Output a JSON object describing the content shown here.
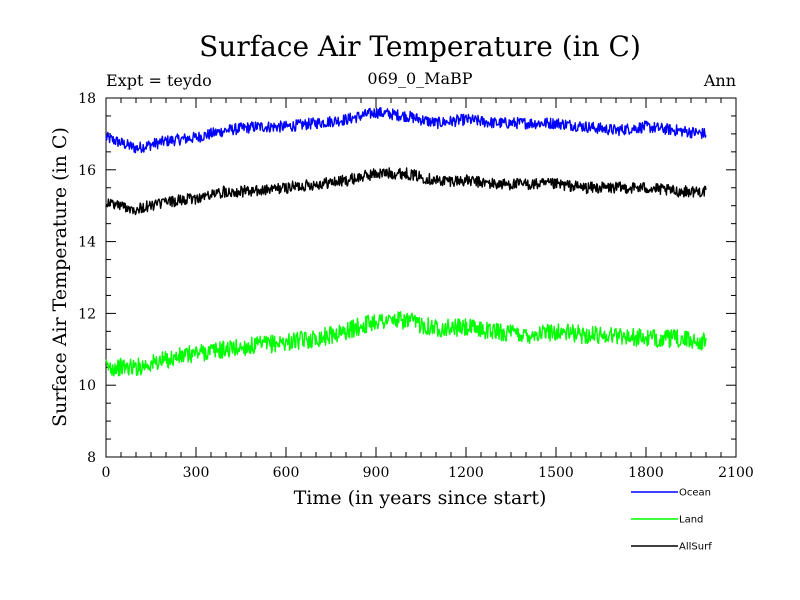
{
  "chart_data": {
    "type": "line",
    "title": "Surface Air Temperature (in C)",
    "subtitle_left": "Expt = teydo",
    "subtitle_center": "069_0_MaBP",
    "subtitle_right": "Ann",
    "xlabel": "Time (in years since start)",
    "ylabel": "Surface Air Temperature (in C)",
    "xlim": [
      0,
      2100
    ],
    "ylim": [
      8,
      18
    ],
    "xticks": [
      0,
      300,
      600,
      900,
      1200,
      1500,
      1800,
      2100
    ],
    "yticks": [
      8,
      10,
      12,
      14,
      16,
      18
    ],
    "legend_position": "bottom-right",
    "series": [
      {
        "name": "Ocean",
        "color": "#0000ff",
        "x": [
          0,
          100,
          200,
          300,
          400,
          500,
          600,
          700,
          800,
          900,
          1000,
          1100,
          1200,
          1300,
          1400,
          1500,
          1600,
          1700,
          1800,
          1900,
          2000
        ],
        "values": [
          16.9,
          16.6,
          16.8,
          16.9,
          17.1,
          17.2,
          17.2,
          17.3,
          17.4,
          17.6,
          17.5,
          17.3,
          17.4,
          17.3,
          17.3,
          17.3,
          17.2,
          17.1,
          17.2,
          17.1,
          17.0
        ]
      },
      {
        "name": "Land",
        "color": "#00ff00",
        "x": [
          0,
          100,
          200,
          300,
          400,
          500,
          600,
          700,
          800,
          900,
          1000,
          1100,
          1200,
          1300,
          1400,
          1500,
          1600,
          1700,
          1800,
          1900,
          2000
        ],
        "values": [
          10.5,
          10.5,
          10.7,
          10.9,
          11.0,
          11.1,
          11.2,
          11.3,
          11.5,
          11.8,
          11.8,
          11.6,
          11.6,
          11.5,
          11.4,
          11.5,
          11.4,
          11.4,
          11.3,
          11.3,
          11.2
        ]
      },
      {
        "name": "AllSurf",
        "color": "#000000",
        "x": [
          0,
          100,
          200,
          300,
          400,
          500,
          600,
          700,
          800,
          900,
          1000,
          1100,
          1200,
          1300,
          1400,
          1500,
          1600,
          1700,
          1800,
          1900,
          2000
        ],
        "values": [
          15.1,
          14.9,
          15.1,
          15.2,
          15.4,
          15.4,
          15.5,
          15.6,
          15.7,
          15.9,
          15.9,
          15.7,
          15.7,
          15.6,
          15.6,
          15.6,
          15.5,
          15.5,
          15.5,
          15.4,
          15.4
        ]
      }
    ]
  }
}
